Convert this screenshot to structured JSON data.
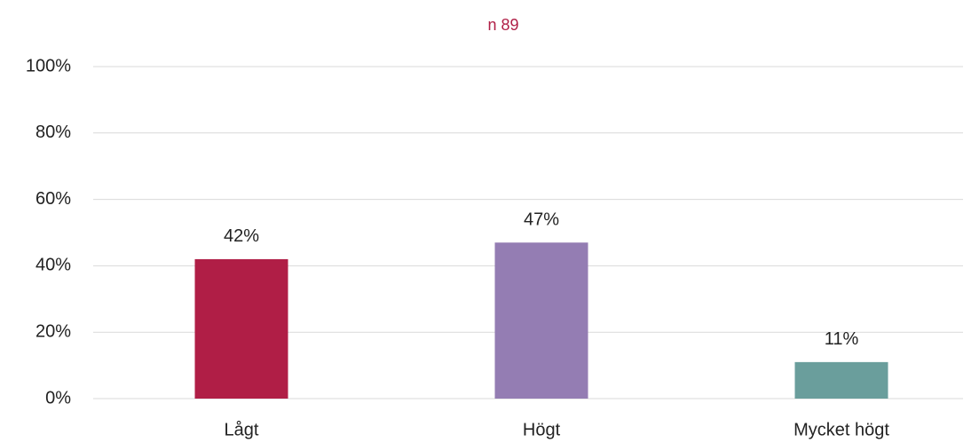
{
  "chart_data": {
    "type": "bar",
    "title": "n 89",
    "categories": [
      "Lågt",
      "Högt",
      "Mycket högt"
    ],
    "values": [
      42,
      47,
      11
    ],
    "value_labels": [
      "42%",
      "47%",
      "11%"
    ],
    "colors": [
      "#b01e46",
      "#947db3",
      "#6a9e9c"
    ],
    "ylim": [
      0,
      100
    ],
    "yticks": [
      {
        "value": 0,
        "label": "0%"
      },
      {
        "value": 20,
        "label": "20%"
      },
      {
        "value": 40,
        "label": "40%"
      },
      {
        "value": 60,
        "label": "60%"
      },
      {
        "value": 80,
        "label": "80%"
      },
      {
        "value": 100,
        "label": "100%"
      }
    ],
    "grid": true
  }
}
